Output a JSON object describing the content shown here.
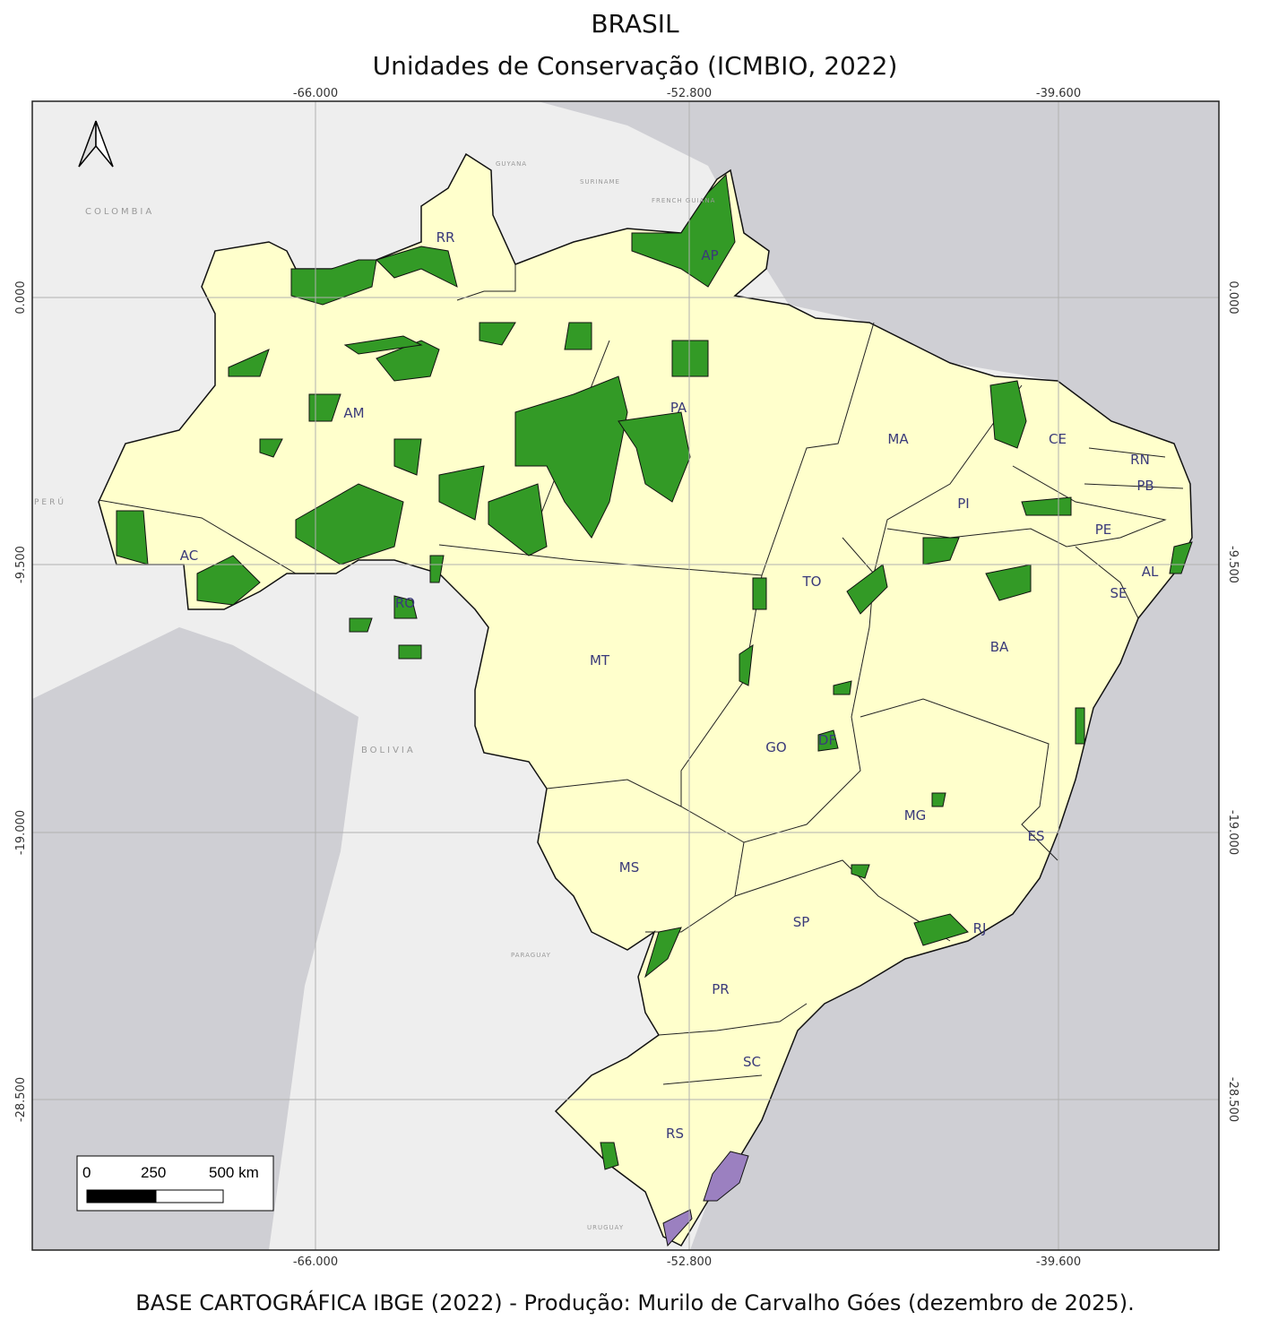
{
  "title": "BRASIL",
  "subtitle": "Unidades de Conservação  (ICMBIO, 2022)",
  "footer": "BASE CARTOGRÁFICA IBGE (2022) - Produção: Murilo de Carvalho Góes (dezembro de 2025).",
  "axes": {
    "longitude_ticks": [
      "-66.000",
      "-52.800",
      "-39.600"
    ],
    "latitude_ticks": [
      "0.000",
      "-9.500",
      "-19.000",
      "-28.500"
    ]
  },
  "states": [
    "RR",
    "AP",
    "AM",
    "PA",
    "MA",
    "CE",
    "RN",
    "PB",
    "PI",
    "PE",
    "AL",
    "SE",
    "AC",
    "RO",
    "TO",
    "MT",
    "BA",
    "GO",
    "DF",
    "MG",
    "ES",
    "MS",
    "SP",
    "RJ",
    "PR",
    "SC",
    "RS"
  ],
  "countries": [
    "COLOMBIA",
    "GUYANA",
    "SURINAME",
    "FRENCH GUIANA",
    "PERÚ",
    "BOLIVIA",
    "PARAGUAY",
    "URUGUAY"
  ],
  "scale_bar": {
    "labels": [
      "0",
      "250",
      "500 km"
    ]
  },
  "north_arrow": "north-arrow-icon",
  "colors": {
    "ocean": "#cfcfd4",
    "land": "#eeeeee",
    "brazil": "#ffffcc",
    "conservation_units": "#339a26",
    "purple_units": "#9b80c0",
    "graticule": "#bbbbbb"
  }
}
